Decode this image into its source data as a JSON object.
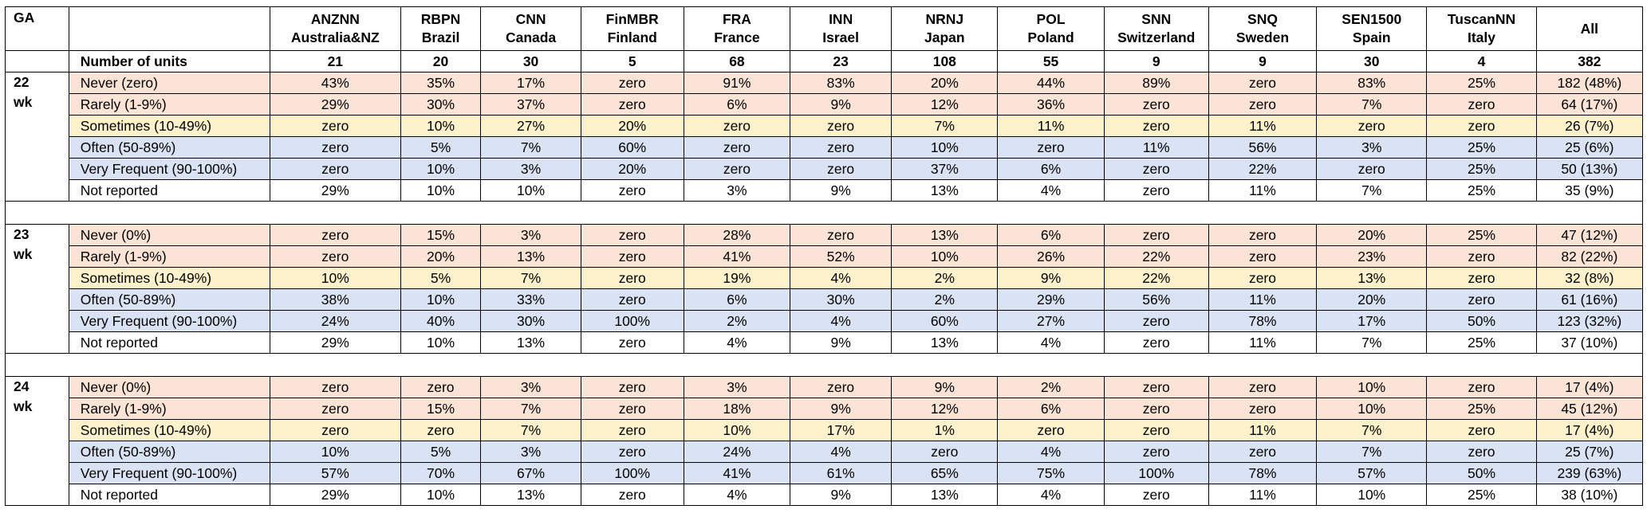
{
  "header": {
    "ga_label": "GA",
    "blank_label": "",
    "columns": [
      {
        "name": "ANZNN",
        "country": "Australia&NZ"
      },
      {
        "name": "RBPN",
        "country": "Brazil"
      },
      {
        "name": "CNN",
        "country": "Canada"
      },
      {
        "name": "FinMBR",
        "country": "Finland"
      },
      {
        "name": "FRA",
        "country": "France"
      },
      {
        "name": "INN",
        "country": "Israel"
      },
      {
        "name": "NRNJ",
        "country": "Japan"
      },
      {
        "name": "POL",
        "country": "Poland"
      },
      {
        "name": "SNN",
        "country": "Switzerland"
      },
      {
        "name": "SNQ",
        "country": "Sweden"
      },
      {
        "name": "SEN1500",
        "country": "Spain"
      },
      {
        "name": "TuscanNN",
        "country": "Italy"
      },
      {
        "name": "All",
        "country": ""
      }
    ]
  },
  "units": {
    "label": "Number of units",
    "values": [
      "21",
      "20",
      "30",
      "5",
      "68",
      "23",
      "108",
      "55",
      "9",
      "9",
      "30",
      "4",
      "382"
    ]
  },
  "row_colors": {
    "never": "#fbe3d6",
    "rarely": "#fbe3d6",
    "sometimes": "#fef2cc",
    "often": "#dae3f3",
    "very_frequent": "#dae3f3",
    "not_reported": "#ffffff"
  },
  "groups": [
    {
      "ga_line1": "22",
      "ga_line2": "wk",
      "rows": [
        {
          "kind": "never",
          "label": "Never (zero)",
          "values": [
            "43%",
            "35%",
            "17%",
            "zero",
            "91%",
            "83%",
            "20%",
            "44%",
            "89%",
            "zero",
            "83%",
            "25%",
            "182 (48%)"
          ]
        },
        {
          "kind": "rarely",
          "label": "Rarely (1-9%)",
          "values": [
            "29%",
            "30%",
            "37%",
            "zero",
            "6%",
            "9%",
            "12%",
            "36%",
            "zero",
            "zero",
            "7%",
            "zero",
            "64 (17%)"
          ]
        },
        {
          "kind": "sometimes",
          "label": "Sometimes (10-49%)",
          "values": [
            "zero",
            "10%",
            "27%",
            "20%",
            "zero",
            "zero",
            "7%",
            "11%",
            "zero",
            "11%",
            "zero",
            "zero",
            "26 (7%)"
          ]
        },
        {
          "kind": "often",
          "label": "Often (50-89%)",
          "values": [
            "zero",
            "5%",
            "7%",
            "60%",
            "zero",
            "zero",
            "10%",
            "zero",
            "11%",
            "56%",
            "3%",
            "25%",
            "25 (6%)"
          ]
        },
        {
          "kind": "veryfrequent",
          "label": "Very Frequent (90-100%)",
          "values": [
            "zero",
            "10%",
            "3%",
            "20%",
            "zero",
            "zero",
            "37%",
            "6%",
            "zero",
            "22%",
            "zero",
            "25%",
            "50 (13%)"
          ]
        },
        {
          "kind": "notreported",
          "label": "Not reported",
          "values": [
            "29%",
            "10%",
            "10%",
            "zero",
            "3%",
            "9%",
            "13%",
            "4%",
            "zero",
            "11%",
            "7%",
            "25%",
            "35 (9%)"
          ]
        }
      ]
    },
    {
      "ga_line1": "23",
      "ga_line2": "wk",
      "rows": [
        {
          "kind": "never",
          "label": "Never (0%)",
          "values": [
            "zero",
            "15%",
            "3%",
            "zero",
            "28%",
            "zero",
            "13%",
            "6%",
            "zero",
            "zero",
            "20%",
            "25%",
            "47 (12%)"
          ]
        },
        {
          "kind": "rarely",
          "label": "Rarely (1-9%)",
          "values": [
            "zero",
            "20%",
            "13%",
            "zero",
            "41%",
            "52%",
            "10%",
            "26%",
            "22%",
            "zero",
            "23%",
            "zero",
            "82 (22%)"
          ]
        },
        {
          "kind": "sometimes",
          "label": "Sometimes (10-49%)",
          "values": [
            "10%",
            "5%",
            "7%",
            "zero",
            "19%",
            "4%",
            "2%",
            "9%",
            "22%",
            "zero",
            "13%",
            "zero",
            "32 (8%)"
          ]
        },
        {
          "kind": "often",
          "label": "Often (50-89%)",
          "values": [
            "38%",
            "10%",
            "33%",
            "zero",
            "6%",
            "30%",
            "2%",
            "29%",
            "56%",
            "11%",
            "20%",
            "zero",
            "61 (16%)"
          ]
        },
        {
          "kind": "veryfrequent",
          "label": "Very Frequent (90-100%)",
          "values": [
            "24%",
            "40%",
            "30%",
            "100%",
            "2%",
            "4%",
            "60%",
            "27%",
            "zero",
            "78%",
            "17%",
            "50%",
            "123 (32%)"
          ]
        },
        {
          "kind": "notreported",
          "label": "Not reported",
          "values": [
            "29%",
            "10%",
            "13%",
            "zero",
            "4%",
            "9%",
            "13%",
            "4%",
            "zero",
            "11%",
            "7%",
            "25%",
            "37 (10%)"
          ]
        }
      ]
    },
    {
      "ga_line1": "24",
      "ga_line2": "wk",
      "rows": [
        {
          "kind": "never",
          "label": "Never (0%)",
          "values": [
            "zero",
            "zero",
            "3%",
            "zero",
            "3%",
            "zero",
            "9%",
            "2%",
            "zero",
            "zero",
            "10%",
            "zero",
            "17 (4%)"
          ]
        },
        {
          "kind": "rarely",
          "label": "Rarely (1-9%)",
          "values": [
            "zero",
            "15%",
            "7%",
            "zero",
            "18%",
            "9%",
            "12%",
            "6%",
            "zero",
            "zero",
            "10%",
            "25%",
            "45 (12%)"
          ]
        },
        {
          "kind": "sometimes",
          "label": "Sometimes (10-49%)",
          "values": [
            "zero",
            "zero",
            "7%",
            "zero",
            "10%",
            "17%",
            "1%",
            "zero",
            "zero",
            "11%",
            "7%",
            "zero",
            "17 (4%)"
          ]
        },
        {
          "kind": "often",
          "label": "Often (50-89%)",
          "values": [
            "10%",
            "5%",
            "3%",
            "zero",
            "24%",
            "4%",
            "zero",
            "4%",
            "zero",
            "zero",
            "7%",
            "zero",
            "25 (7%)"
          ]
        },
        {
          "kind": "veryfrequent",
          "label": "Very Frequent (90-100%)",
          "values": [
            "57%",
            "70%",
            "67%",
            "100%",
            "41%",
            "61%",
            "65%",
            "75%",
            "100%",
            "78%",
            "57%",
            "50%",
            "239 (63%)"
          ]
        },
        {
          "kind": "notreported",
          "label": "Not reported",
          "values": [
            "29%",
            "10%",
            "13%",
            "zero",
            "4%",
            "9%",
            "13%",
            "4%",
            "zero",
            "11%",
            "10%",
            "25%",
            "38 (10%)"
          ]
        }
      ]
    }
  ]
}
